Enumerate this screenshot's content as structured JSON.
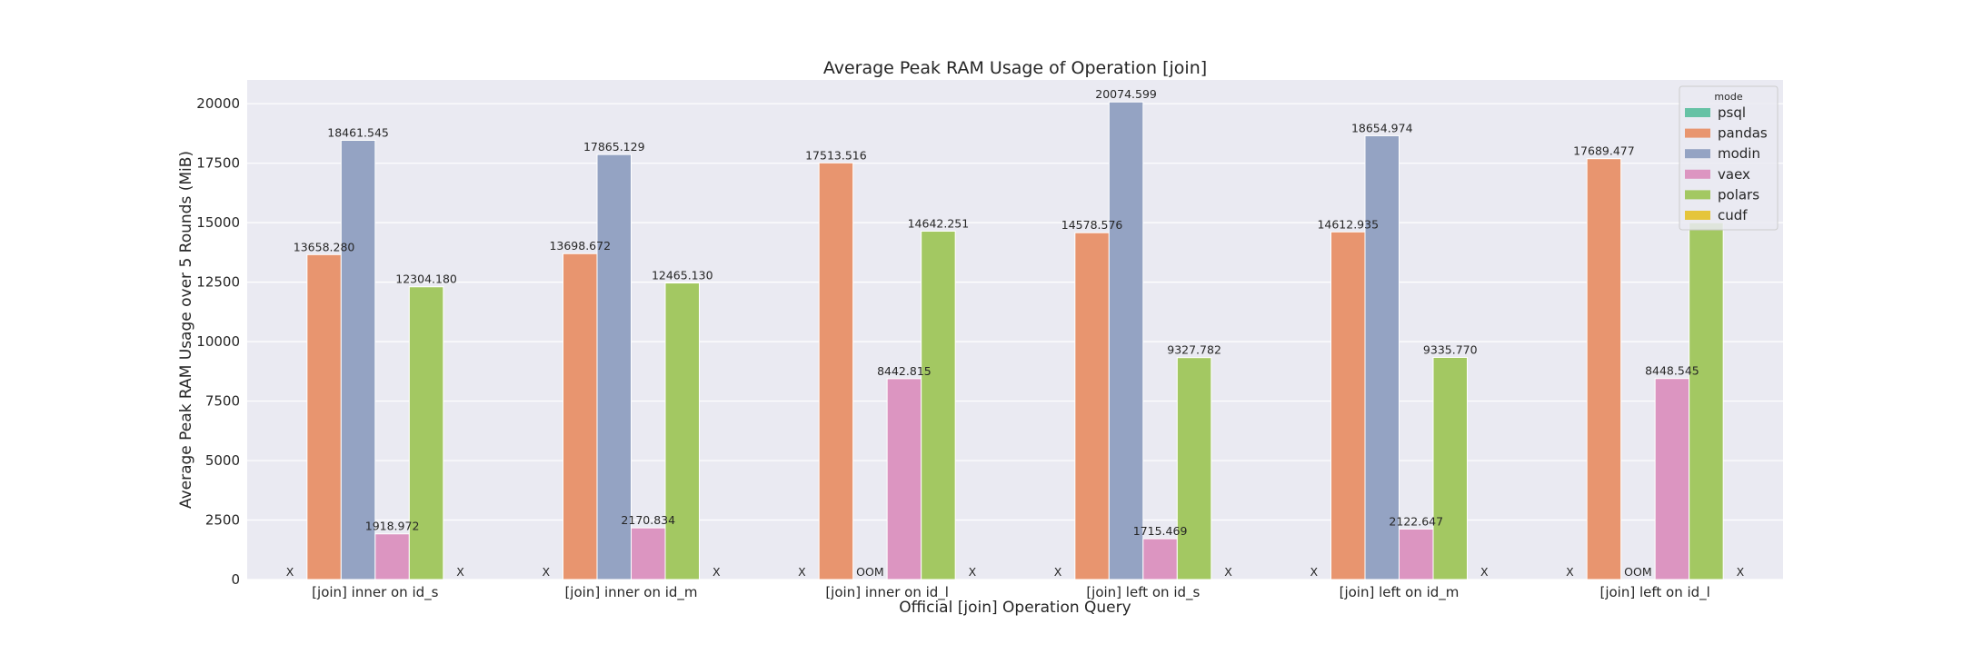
{
  "chart_data": {
    "type": "bar",
    "title": "Average Peak RAM Usage of Operation [join]",
    "xlabel": "Official [join] Operation Query",
    "ylabel": "Average Peak RAM Usage over 5 Rounds (MiB)",
    "ylim": [
      0,
      21000
    ],
    "yticks": [
      0,
      2500,
      5000,
      7500,
      10000,
      12500,
      15000,
      17500,
      20000
    ],
    "grid": true,
    "legend": {
      "title": "mode",
      "placement": "top-right"
    },
    "categories": [
      "[join] inner on id_s",
      "[join] inner on id_m",
      "[join] inner on id_l",
      "[join] left on id_s",
      "[join] left on id_m",
      "[join] left on id_l"
    ],
    "series": [
      {
        "name": "psql",
        "color": "#66c2a5",
        "values": [
          null,
          null,
          null,
          null,
          null,
          null
        ],
        "labels": [
          "X",
          "X",
          "X",
          "X",
          "X",
          "X"
        ]
      },
      {
        "name": "pandas",
        "color": "#e8956f",
        "values": [
          13658.28,
          13698.672,
          17513.516,
          14578.576,
          14612.935,
          17689.477
        ],
        "labels": [
          "13658.280",
          "13698.672",
          "17513.516",
          "14578.576",
          "14612.935",
          "17689.477"
        ]
      },
      {
        "name": "modin",
        "color": "#94a3c3",
        "values": [
          18461.545,
          17865.129,
          null,
          20074.599,
          18654.974,
          null
        ],
        "labels": [
          "18461.545",
          "17865.129",
          "OOM",
          "20074.599",
          "18654.974",
          "OOM"
        ]
      },
      {
        "name": "vaex",
        "color": "#dc95c1",
        "values": [
          1918.972,
          2170.834,
          8442.815,
          1715.469,
          2122.647,
          8448.545
        ],
        "labels": [
          "1918.972",
          "2170.834",
          "8442.815",
          "1715.469",
          "2122.647",
          "8448.545"
        ]
      },
      {
        "name": "polars",
        "color": "#a3c862",
        "values": [
          12304.18,
          12465.13,
          14642.251,
          9327.782,
          9335.77,
          15000
        ],
        "labels": [
          "12304.180",
          "12465.130",
          "14642.251",
          "9327.782",
          "9335.770",
          ""
        ]
      },
      {
        "name": "cudf",
        "color": "#e5c53c",
        "values": [
          null,
          null,
          null,
          null,
          null,
          null
        ],
        "labels": [
          "X",
          "X",
          "X",
          "X",
          "X",
          "X"
        ]
      }
    ]
  }
}
